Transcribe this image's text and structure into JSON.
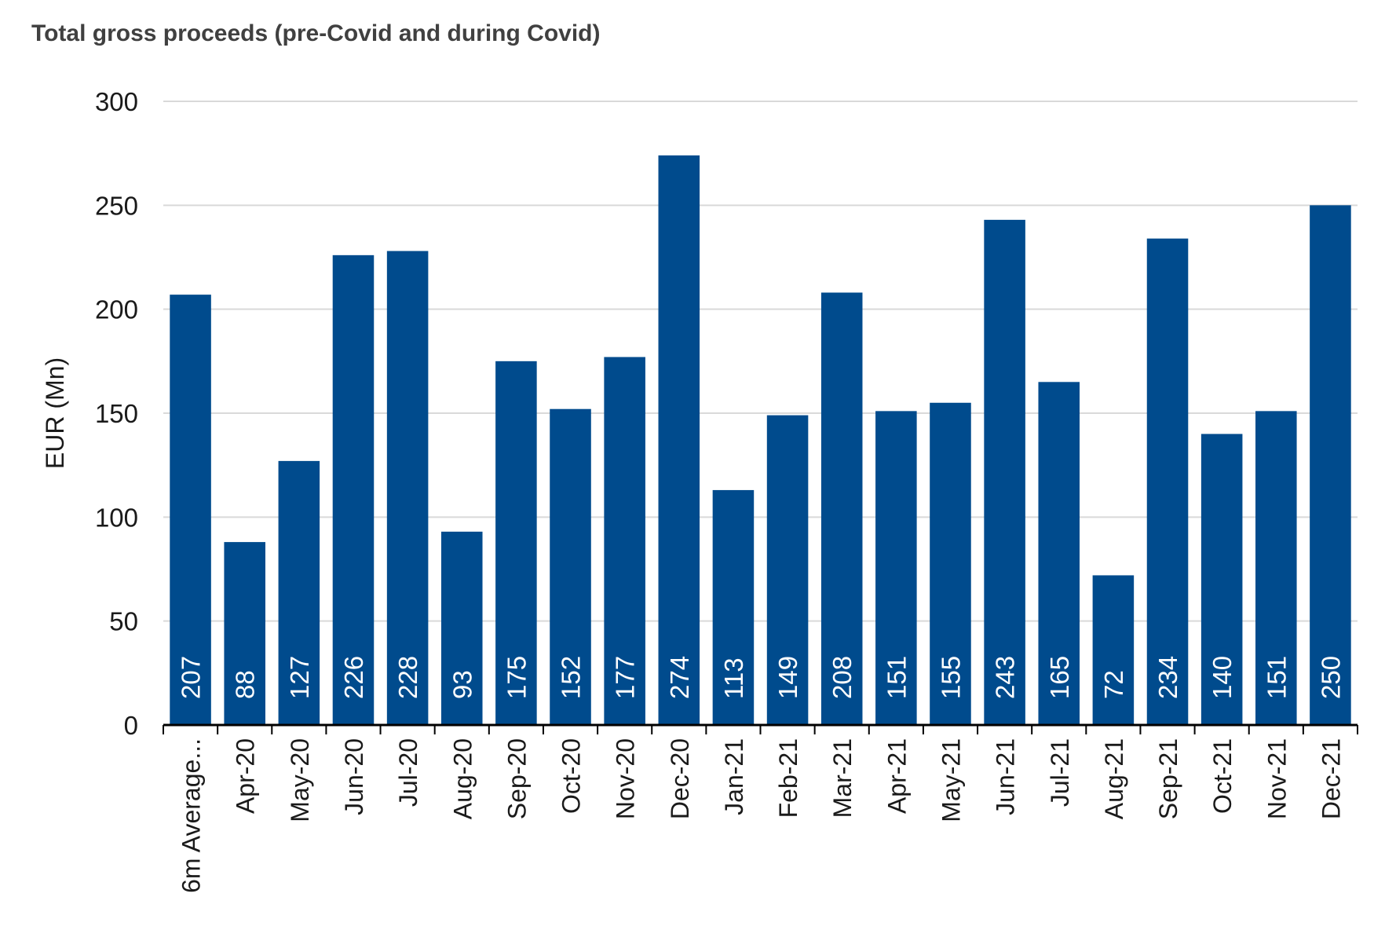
{
  "chart_data": {
    "type": "bar",
    "title": "Total gross proceeds (pre-Covid and during Covid)",
    "ylabel": "EUR (Mn)",
    "xlabel": "",
    "ylim": [
      0,
      300
    ],
    "yticks": [
      0,
      50,
      100,
      150,
      200,
      250,
      300
    ],
    "grid": true,
    "bar_color": "#004b8d",
    "categories": [
      "6m Average...",
      "Apr-20",
      "May-20",
      "Jun-20",
      "Jul-20",
      "Aug-20",
      "Sep-20",
      "Oct-20",
      "Nov-20",
      "Dec-20",
      "Jan-21",
      "Feb-21",
      "Mar-21",
      "Apr-21",
      "May-21",
      "Jun-21",
      "Jul-21",
      "Aug-21",
      "Sep-21",
      "Oct-21",
      "Nov-21",
      "Dec-21"
    ],
    "values": [
      207,
      88,
      127,
      226,
      228,
      93,
      175,
      152,
      177,
      274,
      113,
      149,
      208,
      151,
      155,
      243,
      165,
      72,
      234,
      140,
      151,
      250
    ]
  }
}
